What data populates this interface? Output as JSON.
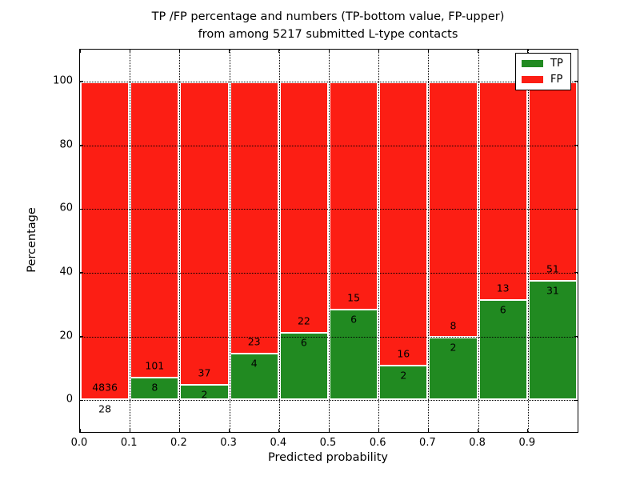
{
  "title": {
    "line1": "TP /FP percentage and numbers (TP-bottom value, FP-upper)",
    "line2": "from among 5217 submitted L-type contacts"
  },
  "colors": {
    "tp_green": "#218a21",
    "fp_red": "#fc1e14",
    "bar_edge": "#ffffff",
    "grid": "#000000",
    "background": "#ffffff"
  },
  "legend": {
    "entries": [
      {
        "label": "TP",
        "color": "#218a21"
      },
      {
        "label": "FP",
        "color": "#fc1e14"
      }
    ],
    "position": "upper right"
  },
  "chart_data": {
    "type": "bar",
    "variant": "stacked_percentage",
    "title_line1": "TP /FP percentage and numbers (TP-bottom value, FP-upper)",
    "title_line2": "from among 5217 submitted L-type contacts",
    "xlabel": "Predicted probability",
    "ylabel": "Percentage",
    "total_contacts": 5217,
    "xlim": [
      0.0,
      1.0
    ],
    "ylim": [
      -10,
      110
    ],
    "grid": "dotted",
    "bin_width": 0.1,
    "bin_starts": [
      0.0,
      0.1,
      0.2,
      0.3,
      0.4,
      0.5,
      0.6,
      0.7,
      0.8,
      0.9
    ],
    "xtick_labels": [
      "0.0",
      "0.1",
      "0.2",
      "0.3",
      "0.4",
      "0.5",
      "0.6",
      "0.7",
      "0.8",
      "0.9"
    ],
    "ytick_values": [
      0,
      20,
      40,
      60,
      80,
      100
    ],
    "ytick_labels": [
      "0",
      "20",
      "40",
      "60",
      "80",
      "100"
    ],
    "series": [
      {
        "name": "TP",
        "color": "#218a21",
        "counts": [
          28,
          8,
          2,
          4,
          6,
          6,
          2,
          2,
          6,
          31
        ]
      },
      {
        "name": "FP",
        "color": "#fc1e14",
        "counts": [
          4836,
          101,
          37,
          23,
          22,
          15,
          16,
          8,
          13,
          51
        ]
      }
    ],
    "tp_percentages": [
      0.58,
      7.34,
      5.13,
      14.81,
      21.43,
      28.57,
      11.11,
      20.0,
      31.58,
      37.8
    ]
  }
}
